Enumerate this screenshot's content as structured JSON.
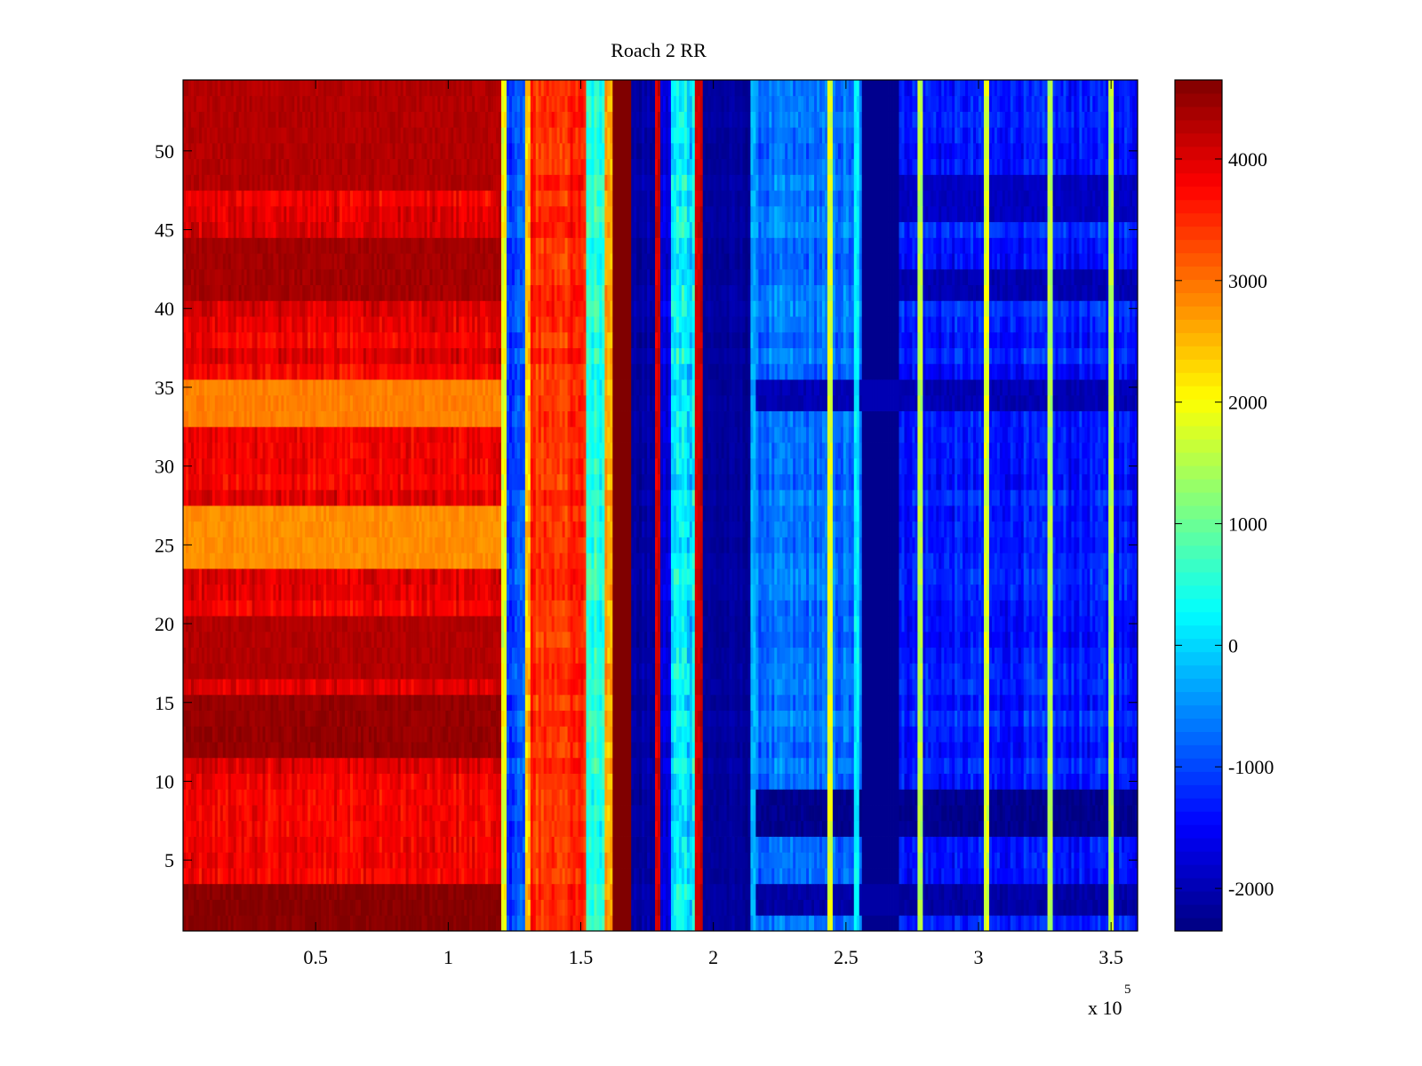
{
  "chart_data": {
    "type": "heatmap",
    "title": "Roach 2 RR",
    "xlabel": "",
    "ylabel": "",
    "x_multiplier_label": "x 10",
    "x_multiplier_exponent": "5",
    "xlim": [
      0,
      3.6
    ],
    "ylim": [
      0.5,
      54.5
    ],
    "x_ticks": [
      0.5,
      1,
      1.5,
      2,
      2.5,
      3,
      3.5
    ],
    "x_tick_labels": [
      "0.5",
      "1",
      "1.5",
      "2",
      "2.5",
      "3",
      "3.5"
    ],
    "y_ticks": [
      5,
      10,
      15,
      20,
      25,
      30,
      35,
      40,
      45,
      50
    ],
    "y_tick_labels": [
      "5",
      "10",
      "15",
      "20",
      "25",
      "30",
      "35",
      "40",
      "45",
      "50"
    ],
    "colorbar": {
      "colormap": "jet",
      "limits": [
        -2350,
        4650
      ],
      "ticks": [
        -2000,
        -1000,
        0,
        1000,
        2000,
        3000,
        4000
      ],
      "tick_labels": [
        "-2000",
        "-1000",
        "0",
        "1000",
        "2000",
        "3000",
        "4000"
      ]
    },
    "rows": 54,
    "column_segments": [
      {
        "x_start": 0.0,
        "x_end": 1.2,
        "level": 3900,
        "noise": 450
      },
      {
        "x_start": 1.2,
        "x_end": 1.22,
        "level": 1800,
        "noise": 600
      },
      {
        "x_start": 1.22,
        "x_end": 1.29,
        "level": -900,
        "noise": 600
      },
      {
        "x_start": 1.29,
        "x_end": 1.31,
        "level": 2400,
        "noise": 700
      },
      {
        "x_start": 1.31,
        "x_end": 1.52,
        "level": 3500,
        "noise": 500
      },
      {
        "x_start": 1.52,
        "x_end": 1.59,
        "level": 600,
        "noise": 600
      },
      {
        "x_start": 1.59,
        "x_end": 1.62,
        "level": 2800,
        "noise": 600
      },
      {
        "x_start": 1.62,
        "x_end": 1.69,
        "level": 4650,
        "noise": 0
      },
      {
        "x_start": 1.69,
        "x_end": 1.78,
        "level": -2100,
        "noise": 250
      },
      {
        "x_start": 1.78,
        "x_end": 1.8,
        "level": 4000,
        "noise": 400
      },
      {
        "x_start": 1.8,
        "x_end": 1.84,
        "level": -1700,
        "noise": 400
      },
      {
        "x_start": 1.84,
        "x_end": 1.93,
        "level": 200,
        "noise": 900
      },
      {
        "x_start": 1.93,
        "x_end": 1.96,
        "level": 4200,
        "noise": 300
      },
      {
        "x_start": 1.96,
        "x_end": 2.14,
        "level": -2150,
        "noise": 200
      },
      {
        "x_start": 2.14,
        "x_end": 2.56,
        "level": -700,
        "noise": 500
      },
      {
        "x_start": 2.56,
        "x_end": 2.7,
        "level": -2250,
        "noise": 0
      },
      {
        "x_start": 2.7,
        "x_end": 3.6,
        "level": -1300,
        "noise": 500
      }
    ],
    "vertical_streaks": [
      {
        "x": 2.15,
        "level": -300
      },
      {
        "x": 2.44,
        "level": 1800
      },
      {
        "x": 2.54,
        "level": 200
      },
      {
        "x": 2.78,
        "level": 1500
      },
      {
        "x": 3.03,
        "level": 1800
      },
      {
        "x": 3.27,
        "level": 1500
      },
      {
        "x": 3.5,
        "level": 1500
      }
    ],
    "horizontal_bands": [
      {
        "rows": [
          1,
          3
        ],
        "x_start": 0.0,
        "x_end": 1.2,
        "level": 4600
      },
      {
        "rows": [
          12,
          15
        ],
        "x_start": 0.0,
        "x_end": 1.2,
        "level": 4500
      },
      {
        "rows": [
          17,
          20
        ],
        "x_start": 0.0,
        "x_end": 1.2,
        "level": 4300
      },
      {
        "rows": [
          41,
          44
        ],
        "x_start": 0.0,
        "x_end": 1.2,
        "level": 4400
      },
      {
        "rows": [
          48,
          54
        ],
        "x_start": 0.0,
        "x_end": 1.2,
        "level": 4300
      },
      {
        "rows": [
          24,
          27
        ],
        "x_start": 0.0,
        "x_end": 1.2,
        "level": 2800
      },
      {
        "rows": [
          33,
          35
        ],
        "x_start": 0.0,
        "x_end": 1.2,
        "level": 2900
      },
      {
        "rows": [
          7,
          9
        ],
        "x_start": 2.14,
        "x_end": 3.6,
        "level": -2250
      },
      {
        "rows": [
          2,
          3
        ],
        "x_start": 2.14,
        "x_end": 3.6,
        "level": -2100
      },
      {
        "rows": [
          34,
          35
        ],
        "x_start": 2.14,
        "x_end": 3.6,
        "level": -2000
      },
      {
        "rows": [
          41,
          42
        ],
        "x_start": 2.7,
        "x_end": 3.6,
        "level": -2000
      },
      {
        "rows": [
          46,
          48
        ],
        "x_start": 2.7,
        "x_end": 3.6,
        "level": -1900
      }
    ]
  }
}
